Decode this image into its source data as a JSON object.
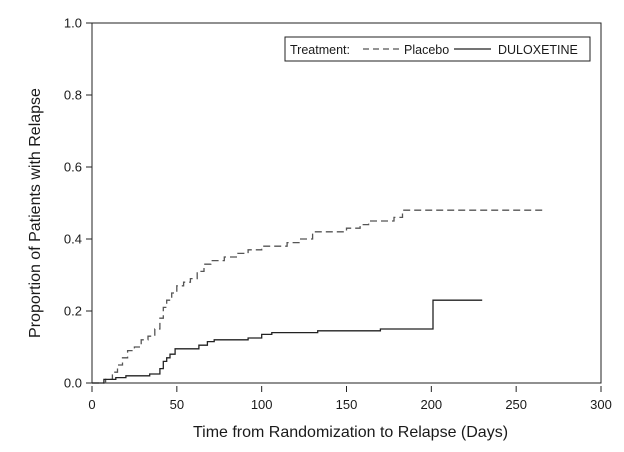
{
  "chart_data": {
    "type": "line",
    "subtype": "step",
    "title": "",
    "xlabel": "Time from Randomization to Relapse (Days)",
    "ylabel": "Proportion of Patients with Relapse",
    "xlim": [
      0,
      300
    ],
    "ylim": [
      0,
      1.0
    ],
    "x_ticks": [
      "0",
      "50",
      "100",
      "150",
      "200",
      "250",
      "300"
    ],
    "y_ticks": [
      "0.0",
      "0.2",
      "0.4",
      "0.6",
      "0.8",
      "1.0"
    ],
    "grid": false,
    "legend": {
      "placement": "top-right",
      "title": "Treatment:",
      "entries": [
        {
          "name": "Placebo",
          "style": "dashed"
        },
        {
          "name": "DULOXETINE",
          "style": "solid"
        }
      ]
    },
    "series": [
      {
        "name": "Placebo",
        "style": "dashed",
        "points": [
          [
            0,
            0.0
          ],
          [
            8,
            0.0
          ],
          [
            8,
            0.01
          ],
          [
            12,
            0.01
          ],
          [
            12,
            0.03
          ],
          [
            15,
            0.03
          ],
          [
            15,
            0.05
          ],
          [
            18,
            0.05
          ],
          [
            18,
            0.07
          ],
          [
            21,
            0.07
          ],
          [
            21,
            0.09
          ],
          [
            25,
            0.09
          ],
          [
            25,
            0.1
          ],
          [
            29,
            0.1
          ],
          [
            29,
            0.12
          ],
          [
            33,
            0.12
          ],
          [
            33,
            0.13
          ],
          [
            37,
            0.13
          ],
          [
            37,
            0.15
          ],
          [
            40,
            0.15
          ],
          [
            40,
            0.18
          ],
          [
            42,
            0.18
          ],
          [
            42,
            0.21
          ],
          [
            44,
            0.21
          ],
          [
            44,
            0.23
          ],
          [
            47,
            0.23
          ],
          [
            47,
            0.25
          ],
          [
            50,
            0.25
          ],
          [
            50,
            0.27
          ],
          [
            54,
            0.27
          ],
          [
            54,
            0.28
          ],
          [
            58,
            0.28
          ],
          [
            58,
            0.29
          ],
          [
            62,
            0.29
          ],
          [
            62,
            0.31
          ],
          [
            66,
            0.31
          ],
          [
            66,
            0.33
          ],
          [
            70,
            0.33
          ],
          [
            70,
            0.34
          ],
          [
            78,
            0.34
          ],
          [
            78,
            0.35
          ],
          [
            86,
            0.35
          ],
          [
            86,
            0.36
          ],
          [
            92,
            0.36
          ],
          [
            92,
            0.37
          ],
          [
            100,
            0.37
          ],
          [
            100,
            0.38
          ],
          [
            115,
            0.38
          ],
          [
            115,
            0.39
          ],
          [
            122,
            0.39
          ],
          [
            122,
            0.4
          ],
          [
            130,
            0.4
          ],
          [
            130,
            0.42
          ],
          [
            150,
            0.42
          ],
          [
            150,
            0.43
          ],
          [
            158,
            0.43
          ],
          [
            158,
            0.44
          ],
          [
            163,
            0.44
          ],
          [
            163,
            0.45
          ],
          [
            178,
            0.45
          ],
          [
            178,
            0.46
          ],
          [
            183,
            0.46
          ],
          [
            183,
            0.48
          ],
          [
            266,
            0.48
          ]
        ]
      },
      {
        "name": "DULOXETINE",
        "style": "solid",
        "points": [
          [
            0,
            0.0
          ],
          [
            7,
            0.0
          ],
          [
            7,
            0.01
          ],
          [
            14,
            0.01
          ],
          [
            14,
            0.015
          ],
          [
            20,
            0.015
          ],
          [
            20,
            0.02
          ],
          [
            34,
            0.02
          ],
          [
            34,
            0.025
          ],
          [
            40,
            0.025
          ],
          [
            40,
            0.04
          ],
          [
            42,
            0.04
          ],
          [
            42,
            0.06
          ],
          [
            44,
            0.06
          ],
          [
            44,
            0.07
          ],
          [
            46,
            0.07
          ],
          [
            46,
            0.08
          ],
          [
            49,
            0.08
          ],
          [
            49,
            0.095
          ],
          [
            63,
            0.095
          ],
          [
            63,
            0.105
          ],
          [
            68,
            0.105
          ],
          [
            68,
            0.115
          ],
          [
            72,
            0.115
          ],
          [
            72,
            0.12
          ],
          [
            92,
            0.12
          ],
          [
            92,
            0.125
          ],
          [
            100,
            0.125
          ],
          [
            100,
            0.135
          ],
          [
            106,
            0.135
          ],
          [
            106,
            0.14
          ],
          [
            133,
            0.14
          ],
          [
            133,
            0.145
          ],
          [
            170,
            0.145
          ],
          [
            170,
            0.15
          ],
          [
            201,
            0.15
          ],
          [
            201,
            0.23
          ],
          [
            230,
            0.23
          ]
        ]
      }
    ]
  }
}
